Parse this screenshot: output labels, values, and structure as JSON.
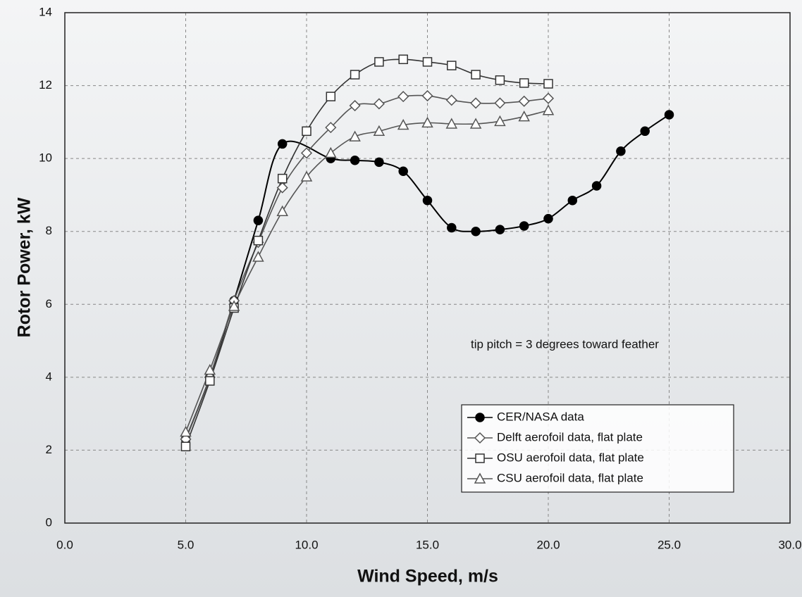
{
  "chart_data": {
    "type": "line",
    "xlabel": "Wind Speed, m/s",
    "ylabel": "Rotor Power, kW",
    "annotation": "tip pitch = 3 degrees toward feather",
    "xlim": [
      0,
      30
    ],
    "xticks": [
      {
        "value": 0,
        "label": "0.0"
      },
      {
        "value": 5,
        "label": "5.0"
      },
      {
        "value": 10,
        "label": "10.0"
      },
      {
        "value": 15,
        "label": "15.0"
      },
      {
        "value": 20,
        "label": "20.0"
      },
      {
        "value": 25,
        "label": "25.0"
      },
      {
        "value": 30,
        "label": "30.0"
      }
    ],
    "ylim": [
      0,
      14
    ],
    "yticks": [
      0,
      2,
      4,
      6,
      8,
      10,
      12,
      14
    ],
    "grid": true,
    "legend": "lower right",
    "series": [
      {
        "name": "CER/NASA data",
        "color": "#000000",
        "marker": "circle",
        "x": [
          5,
          6,
          7,
          8,
          9,
          11,
          12,
          13,
          14,
          15,
          16,
          17,
          18,
          19,
          20,
          21,
          22,
          23,
          24,
          25
        ],
        "values": [
          2.3,
          4.0,
          6.1,
          8.3,
          10.4,
          10.0,
          9.95,
          9.9,
          9.65,
          8.85,
          8.1,
          8.0,
          8.05,
          8.15,
          8.35,
          8.85,
          9.25,
          10.2,
          10.75,
          11.2
        ]
      },
      {
        "name": "Delft aerofoil data, flat plate",
        "color": "#555555",
        "marker": "diamond",
        "x": [
          5,
          6,
          7,
          8,
          9,
          10,
          11,
          12,
          13,
          14,
          15,
          16,
          17,
          18,
          19,
          20
        ],
        "values": [
          2.3,
          4.0,
          6.1,
          7.7,
          9.2,
          10.15,
          10.85,
          11.45,
          11.5,
          11.7,
          11.72,
          11.6,
          11.52,
          11.52,
          11.57,
          11.65
        ]
      },
      {
        "name": "OSU aerofoil data, flat plate",
        "color": "#333333",
        "marker": "square",
        "x": [
          5,
          6,
          7,
          8,
          9,
          10,
          11,
          12,
          13,
          14,
          15,
          16,
          17,
          18,
          19,
          20
        ],
        "values": [
          2.1,
          3.9,
          5.9,
          7.75,
          9.45,
          10.75,
          11.7,
          12.3,
          12.65,
          12.72,
          12.65,
          12.55,
          12.3,
          12.15,
          12.07,
          12.05
        ]
      },
      {
        "name": "CSU aerofoil data, flat plate",
        "color": "#555555",
        "marker": "triangle",
        "x": [
          5,
          6,
          7,
          8,
          9,
          10,
          11,
          12,
          13,
          14,
          15,
          16,
          17,
          18,
          19,
          20
        ],
        "values": [
          2.5,
          4.2,
          5.95,
          7.3,
          8.55,
          9.5,
          10.15,
          10.6,
          10.75,
          10.92,
          10.98,
          10.95,
          10.95,
          11.02,
          11.15,
          11.32
        ]
      }
    ]
  }
}
